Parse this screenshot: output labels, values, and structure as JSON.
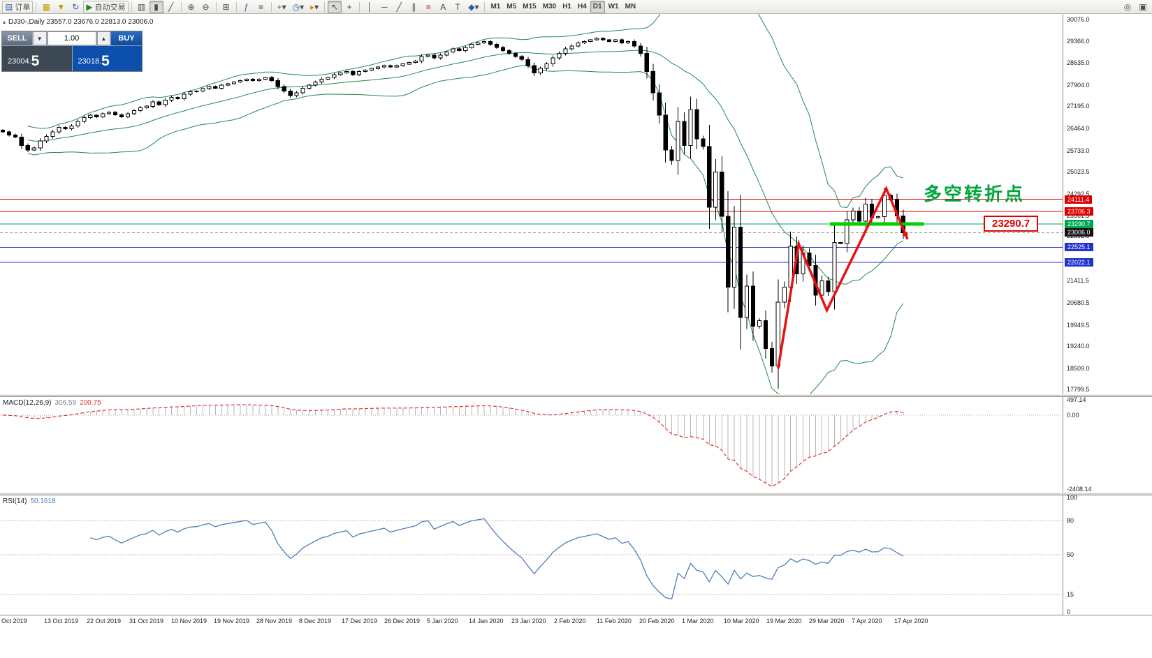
{
  "toolbar": {
    "new_order_label": "订单",
    "autotrading_label": "自动交易",
    "timeframes": [
      "M1",
      "M5",
      "M15",
      "M30",
      "H1",
      "H4",
      "D1",
      "W1",
      "MN"
    ],
    "active_timeframe": "D1"
  },
  "icons": {
    "new_order": "▤",
    "layouts": "▦",
    "profiles": "▼",
    "refresh": "↻",
    "play": "▶",
    "bars": "▥",
    "candles": "▮",
    "line": "╱",
    "zoom_in": "⊕",
    "zoom_out": "⊖",
    "grid": "⊞",
    "indicators": "ƒ",
    "objects": "≡",
    "add": "+",
    "clock": "◷",
    "shift": "▸",
    "cursor": "↖",
    "crosshair": "+",
    "vline": "│",
    "hline": "─",
    "tline": "╱",
    "channel": "∥",
    "fibo": "≡",
    "text": "A",
    "label": "T",
    "shapes": "◆",
    "dd": "▾",
    "search": "◎",
    "windows": "▣",
    "expander": "▴",
    "spin_up": "▲",
    "spin_down": "▼"
  },
  "chart": {
    "symbol_line": "DJ30-,Daily 23557.0 23676.0 22813.0 23006.0",
    "annotation": "多空转折点",
    "callout_price": "23290.7"
  },
  "trade_panel": {
    "sell_label": "SELL",
    "buy_label": "BUY",
    "lot": "1.00",
    "sell_price_main": "23004.",
    "sell_price_big": "5",
    "buy_price_main": "23018.",
    "buy_price_big": "5"
  },
  "macd": {
    "label": "MACD(12,26,9)",
    "value_main": "306.59",
    "value_signal": "200.75",
    "axis": [
      "497.14",
      "0.00",
      "-2408.14"
    ]
  },
  "rsi": {
    "label": "RSI(14)",
    "value": "50.1618",
    "axis": [
      "100",
      "80",
      "50",
      "15",
      "0"
    ],
    "levels": [
      80,
      50,
      15
    ]
  },
  "dates": [
    "Oct 2019",
    "13 Oct 2019",
    "22 Oct 2019",
    "31 Oct 2019",
    "10 Nov 2019",
    "19 Nov 2019",
    "28 Nov 2019",
    "8 Dec 2019",
    "17 Dec 2019",
    "26 Dec 2019",
    "5 Jan 2020",
    "14 Jan 2020",
    "23 Jan 2020",
    "2 Feb 2020",
    "11 Feb 2020",
    "20 Feb 2020",
    "1 Mar 2020",
    "10 Mar 2020",
    "19 Mar 2020",
    "29 Mar 2020",
    "7 Apr 2020",
    "17 Apr 2020"
  ],
  "chart_data": {
    "type": "candlestick",
    "symbol": "DJ30-",
    "timeframe": "Daily",
    "last_bar_ohlc": {
      "open": 23557.0,
      "high": 23676.0,
      "low": 22813.0,
      "close": 23006.0
    },
    "y_range": [
      17649,
      30260
    ],
    "axis_ticks": [
      30076.0,
      29366.0,
      28635.0,
      27904.0,
      27195.0,
      26464.0,
      25733.0,
      25023.5,
      24292.5,
      23561.5,
      22892.0,
      21411.5,
      20680.5,
      19949.5,
      19240.0,
      18509.0,
      17799.5
    ],
    "price_lines": [
      {
        "price": 24111.4,
        "color": "#dd0000",
        "chip": "#dd0000",
        "style": "solid"
      },
      {
        "price": 23706.3,
        "color": "#dd0000",
        "chip": "#dd0000",
        "style": "solid"
      },
      {
        "price": 23290.7,
        "color": "#00a651",
        "chip": "#00a651",
        "style": "solid"
      },
      {
        "price": 23006.0,
        "color": "#999999",
        "chip": "#111111",
        "style": "dash"
      },
      {
        "price": 22525.1,
        "color": "#2233cc",
        "chip": "#2233cc",
        "style": "solid"
      },
      {
        "price": 22022.1,
        "color": "#2233cc",
        "chip": "#2233cc",
        "style": "solid"
      }
    ],
    "indicators": [
      {
        "name": "Bollinger Bands",
        "period": 20,
        "deviation": 2
      },
      {
        "name": "MACD",
        "fast": 12,
        "slow": 26,
        "signal": 9,
        "current": 306.59,
        "current_signal": 200.75
      },
      {
        "name": "RSI",
        "period": 14,
        "current": 50.1618
      }
    ],
    "closes": [
      26350,
      26250,
      26180,
      25900,
      25750,
      25820,
      26050,
      26200,
      26350,
      26500,
      26450,
      26550,
      26700,
      26820,
      26900,
      26850,
      26950,
      27000,
      26920,
      26850,
      26950,
      27050,
      27150,
      27200,
      27340,
      27250,
      27400,
      27500,
      27450,
      27600,
      27680,
      27700,
      27780,
      27850,
      27800,
      27900,
      27950,
      28000,
      28050,
      28100,
      28050,
      28100,
      28150,
      28050,
      27850,
      27700,
      27550,
      27650,
      27800,
      27900,
      28000,
      28100,
      28150,
      28250,
      28300,
      28350,
      28250,
      28350,
      28400,
      28450,
      28500,
      28550,
      28500,
      28550,
      28600,
      28650,
      28700,
      28850,
      28900,
      28800,
      28900,
      29000,
      29100,
      29050,
      29150,
      29250,
      29300,
      29350,
      29250,
      29150,
      29050,
      28950,
      28850,
      28750,
      28550,
      28300,
      28450,
      28600,
      28800,
      28950,
      29100,
      29200,
      29300,
      29350,
      29400,
      29450,
      29400,
      29350,
      29400,
      29300,
      29350,
      29200,
      28950,
      28350,
      27650,
      26900,
      25750,
      25400,
      26700,
      25900,
      27090,
      26120,
      25860,
      23850,
      25020,
      23550,
      21200,
      23190,
      20190,
      21240,
      19900,
      20090,
      19170,
      18590,
      20700,
      21200,
      22550,
      21640,
      22330,
      21920,
      20940,
      21410,
      21050,
      22680,
      22650,
      23430,
      23720,
      23390,
      23950,
      23500,
      23540,
      24240,
      24100,
      23560,
      23006
    ],
    "drawings": {
      "trend_zigzag": [
        {
          "bar": 124.0,
          "price": 18500
        },
        {
          "bar": 127.3,
          "price": 22640
        },
        {
          "bar": 131.8,
          "price": 20430
        },
        {
          "bar": 141.3,
          "price": 24470
        },
        {
          "bar": 144.7,
          "price": 22790
        }
      ],
      "support_segment": {
        "price": 23290.7,
        "bar_start": 132.3,
        "bar_end": 147.3
      }
    }
  }
}
